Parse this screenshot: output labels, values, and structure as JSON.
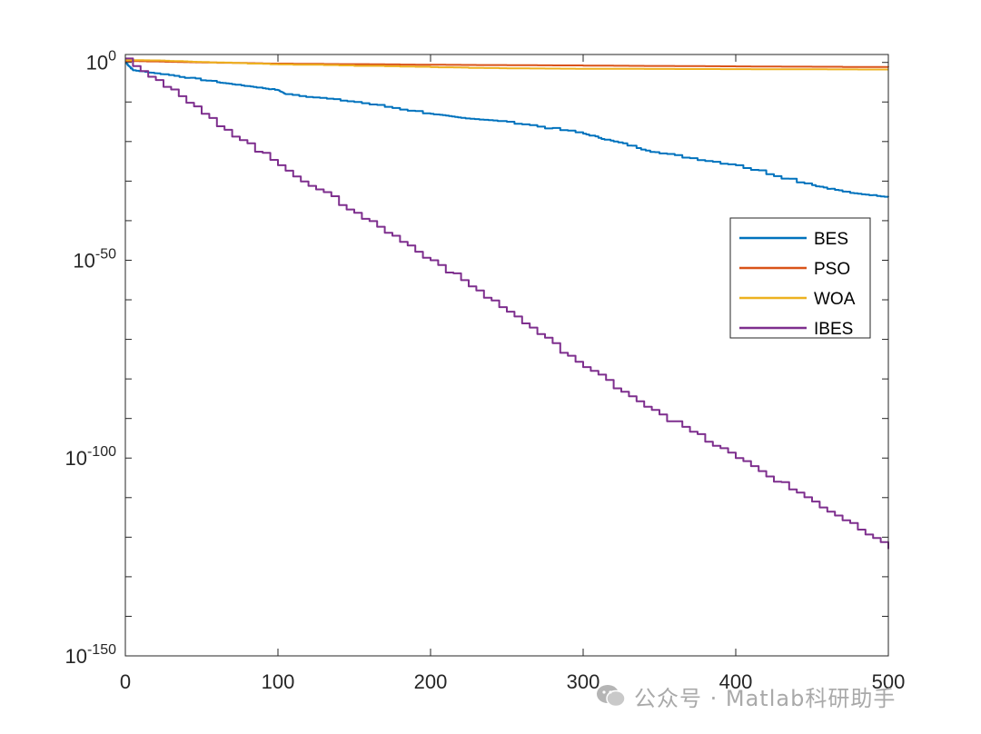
{
  "chart_data": {
    "type": "line",
    "y_scale": "log",
    "x_ticks": [
      0,
      100,
      200,
      300,
      400,
      500
    ],
    "y_ticks": [
      {
        "base": "10",
        "exp": "0"
      },
      {
        "base": "10",
        "exp": "-50"
      },
      {
        "base": "10",
        "exp": "-100"
      },
      {
        "base": "10",
        "exp": "-150"
      }
    ],
    "xlim": [
      0,
      500
    ],
    "ylim_log10": [
      -150,
      2
    ],
    "grid": false,
    "legend_placement": "right",
    "series": [
      {
        "name": "BES",
        "color": "#0072BD",
        "x": [
          0,
          5,
          25,
          60,
          80,
          100,
          105,
          150,
          200,
          220,
          250,
          300,
          320,
          350,
          400,
          450,
          475,
          500
        ],
        "log10_y": [
          0,
          -2,
          -3,
          -5,
          -6,
          -7,
          -8,
          -10,
          -13,
          -14,
          -15,
          -18,
          -20,
          -23,
          -26,
          -31,
          -33,
          -34
        ]
      },
      {
        "name": "PSO",
        "color": "#D95319",
        "x": [
          0,
          10,
          50,
          100,
          200,
          300,
          400,
          500
        ],
        "log10_y": [
          0.4,
          0.3,
          0,
          -0.3,
          -0.6,
          -0.8,
          -1.0,
          -1.2
        ]
      },
      {
        "name": "WOA",
        "color": "#EDB120",
        "x": [
          0,
          20,
          50,
          100,
          200,
          250,
          300,
          400,
          500
        ],
        "log10_y": [
          0.6,
          0.5,
          0.1,
          -0.5,
          -1.2,
          -1.5,
          -1.6,
          -1.7,
          -1.8
        ]
      },
      {
        "name": "IBES",
        "color": "#7E2F8E",
        "x": [
          0,
          50,
          100,
          150,
          200,
          250,
          300,
          350,
          400,
          450,
          500
        ],
        "log10_y": [
          1,
          -13,
          -26,
          -38,
          -50,
          -63,
          -77,
          -89,
          -100,
          -111,
          -123
        ]
      }
    ]
  },
  "watermark": {
    "icon": "wechat-icon",
    "text": "公众号 · Matlab科研助手"
  }
}
